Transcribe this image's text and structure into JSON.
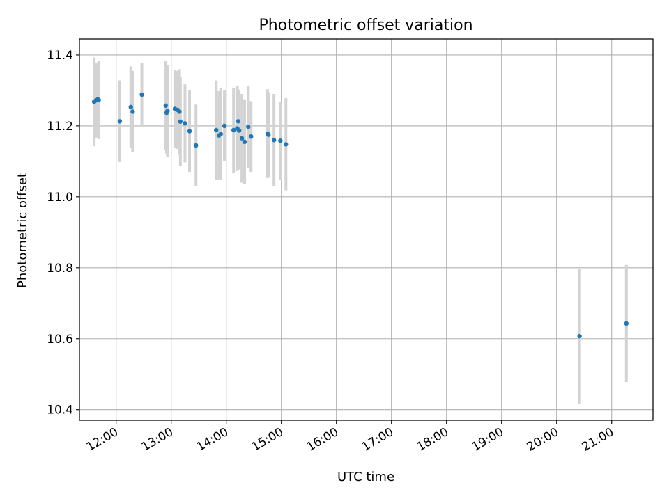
{
  "chart_data": {
    "type": "scatter",
    "title": "Photometric offset variation",
    "xlabel": "UTC time",
    "ylabel": "Photometric offset",
    "xlim": [
      "11:20",
      "21:45"
    ],
    "ylim": [
      10.37,
      11.445
    ],
    "grid": true,
    "x_ticks": [
      "12:00",
      "13:00",
      "14:00",
      "15:00",
      "16:00",
      "17:00",
      "18:00",
      "19:00",
      "20:00",
      "21:00"
    ],
    "y_ticks": [
      "10.4",
      "10.6",
      "10.8",
      "11.0",
      "11.2",
      "11.4"
    ],
    "colors": {
      "points": "#1f77b4",
      "errorbars": "#d3d3d3",
      "grid": "#b0b0b0",
      "axes": "#000000"
    },
    "series": [
      {
        "x": [
          "11:36",
          "11:38",
          "11:40",
          "11:41",
          "12:04",
          "12:16",
          "12:18",
          "12:28",
          "12:54",
          "12:55",
          "12:56",
          "13:04",
          "13:07",
          "13:09",
          "13:10",
          "13:15",
          "13:20",
          "13:27",
          "13:49",
          "13:52",
          "13:54",
          "13:58",
          "14:08",
          "14:12",
          "14:13",
          "14:14",
          "14:17",
          "14:20",
          "14:24",
          "14:27",
          "14:45",
          "14:46",
          "14:52",
          "14:59",
          "15:05",
          "20:25",
          "21:16"
        ],
        "y": [
          11.268,
          11.272,
          11.275,
          11.273,
          11.213,
          11.253,
          11.24,
          11.288,
          11.257,
          11.237,
          11.242,
          11.248,
          11.245,
          11.24,
          11.212,
          11.207,
          11.185,
          11.145,
          11.188,
          11.173,
          11.177,
          11.2,
          11.188,
          11.193,
          11.213,
          11.187,
          11.165,
          11.155,
          11.197,
          11.17,
          11.178,
          11.175,
          11.16,
          11.158,
          11.148,
          10.607,
          10.643
        ],
        "yerr": [
          0.125,
          0.105,
          0.09,
          0.11,
          0.115,
          0.115,
          0.115,
          0.09,
          0.125,
          0.115,
          0.13,
          0.11,
          0.11,
          0.12,
          0.125,
          0.11,
          0.115,
          0.115,
          0.14,
          0.125,
          0.13,
          0.1,
          0.12,
          0.12,
          0.09,
          0.11,
          0.125,
          0.12,
          0.115,
          0.1,
          0.125,
          0.12,
          0.13,
          0.11,
          0.13,
          0.19,
          0.165
        ]
      }
    ]
  }
}
